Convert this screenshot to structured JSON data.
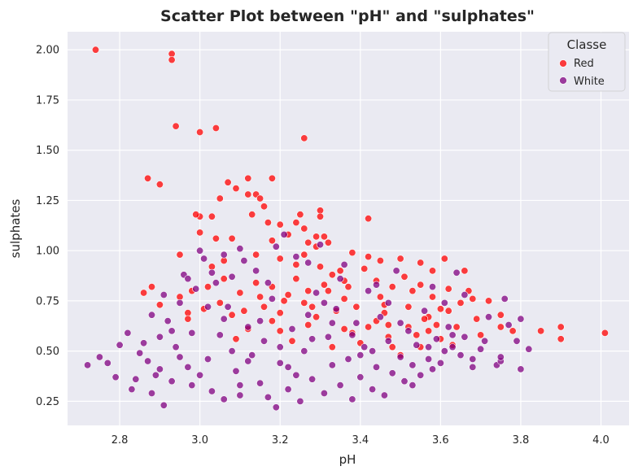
{
  "chart_data": {
    "type": "scatter",
    "title": "Scatter Plot between \"pH\" and \"sulphates\"",
    "xlabel": "pH",
    "ylabel": "sulphates",
    "xlim": [
      2.67,
      4.07
    ],
    "ylim": [
      0.13,
      2.09
    ],
    "x_ticks": [
      2.8,
      3.0,
      3.2,
      3.4,
      3.6,
      3.8,
      4.0
    ],
    "x_tick_labels": [
      "2.8",
      "3.0",
      "3.2",
      "3.4",
      "3.6",
      "3.8",
      "4.0"
    ],
    "y_ticks": [
      0.25,
      0.5,
      0.75,
      1.0,
      1.25,
      1.5,
      1.75,
      2.0
    ],
    "y_tick_labels": [
      "0.25",
      "0.50",
      "0.75",
      "1.00",
      "1.25",
      "1.50",
      "1.75",
      "2.00"
    ],
    "grid": true,
    "legend": {
      "title": "Classe",
      "placement": "top-right"
    },
    "series": [
      {
        "name": "Red",
        "color": "#ff0000",
        "points": [
          [
            2.74,
            2.0
          ],
          [
            2.93,
            1.98
          ],
          [
            2.93,
            1.95
          ],
          [
            2.94,
            1.62
          ],
          [
            3.0,
            1.59
          ],
          [
            3.04,
            1.61
          ],
          [
            3.26,
            1.56
          ],
          [
            2.87,
            1.36
          ],
          [
            2.9,
            1.33
          ],
          [
            3.12,
            1.36
          ],
          [
            3.18,
            1.36
          ],
          [
            3.07,
            1.34
          ],
          [
            3.12,
            1.28
          ],
          [
            3.14,
            1.28
          ],
          [
            3.09,
            1.31
          ],
          [
            3.15,
            1.26
          ],
          [
            3.05,
            1.26
          ],
          [
            3.16,
            1.22
          ],
          [
            3.25,
            1.18
          ],
          [
            3.3,
            1.2
          ],
          [
            3.3,
            1.17
          ],
          [
            3.42,
            1.16
          ],
          [
            3.13,
            1.18
          ],
          [
            3.0,
            1.17
          ],
          [
            2.99,
            1.18
          ],
          [
            3.03,
            1.17
          ],
          [
            3.2,
            1.13
          ],
          [
            3.24,
            1.14
          ],
          [
            3.26,
            1.11
          ],
          [
            3.17,
            1.14
          ],
          [
            3.22,
            1.08
          ],
          [
            3.29,
            1.07
          ],
          [
            3.31,
            1.07
          ],
          [
            3.0,
            1.09
          ],
          [
            3.04,
            1.06
          ],
          [
            3.08,
            1.06
          ],
          [
            3.18,
            1.05
          ],
          [
            3.27,
            1.04
          ],
          [
            3.32,
            1.04
          ],
          [
            2.95,
            0.98
          ],
          [
            3.26,
            0.98
          ],
          [
            3.38,
            0.99
          ],
          [
            3.42,
            0.97
          ],
          [
            3.45,
            0.95
          ],
          [
            3.5,
            0.96
          ],
          [
            3.55,
            0.94
          ],
          [
            3.61,
            0.96
          ],
          [
            3.58,
            0.9
          ],
          [
            3.66,
            0.9
          ],
          [
            3.72,
            0.75
          ],
          [
            3.75,
            0.68
          ],
          [
            3.68,
            0.76
          ],
          [
            3.7,
            0.58
          ],
          [
            3.78,
            0.6
          ],
          [
            3.85,
            0.6
          ],
          [
            3.9,
            0.62
          ],
          [
            3.9,
            0.56
          ],
          [
            4.01,
            0.59
          ],
          [
            3.63,
            0.53
          ],
          [
            3.6,
            0.56
          ],
          [
            3.57,
            0.67
          ],
          [
            3.55,
            0.83
          ],
          [
            3.53,
            0.8
          ],
          [
            3.48,
            0.82
          ],
          [
            3.62,
            0.81
          ],
          [
            3.46,
            0.73
          ],
          [
            3.36,
            0.76
          ],
          [
            3.34,
            0.7
          ],
          [
            3.44,
            0.65
          ],
          [
            3.38,
            0.59
          ],
          [
            3.52,
            0.62
          ],
          [
            3.47,
            0.57
          ],
          [
            3.28,
            0.72
          ],
          [
            3.22,
            0.78
          ],
          [
            3.18,
            0.82
          ],
          [
            3.24,
            0.86
          ],
          [
            3.3,
            0.92
          ],
          [
            3.33,
            0.88
          ],
          [
            3.14,
            0.84
          ],
          [
            3.1,
            0.79
          ],
          [
            3.06,
            0.86
          ],
          [
            3.02,
            0.82
          ],
          [
            2.98,
            0.8
          ],
          [
            2.95,
            0.77
          ],
          [
            2.88,
            0.82
          ],
          [
            2.86,
            0.79
          ],
          [
            2.9,
            0.73
          ],
          [
            2.97,
            0.69
          ],
          [
            3.08,
            0.68
          ],
          [
            3.12,
            0.61
          ],
          [
            3.2,
            0.6
          ],
          [
            3.27,
            0.63
          ],
          [
            3.36,
            0.61
          ],
          [
            3.4,
            0.54
          ],
          [
            3.5,
            0.48
          ],
          [
            3.55,
            0.52
          ],
          [
            3.44,
            0.85
          ],
          [
            3.37,
            0.82
          ],
          [
            3.32,
            0.8
          ],
          [
            3.26,
            0.74
          ],
          [
            3.2,
            0.69
          ],
          [
            3.16,
            0.72
          ],
          [
            3.05,
            0.74
          ],
          [
            3.01,
            0.71
          ],
          [
            2.97,
            0.66
          ],
          [
            3.24,
            0.93
          ],
          [
            3.35,
            0.9
          ],
          [
            3.41,
            0.91
          ],
          [
            3.51,
            0.87
          ],
          [
            3.58,
            0.77
          ],
          [
            3.65,
            0.74
          ],
          [
            3.67,
            0.8
          ],
          [
            3.62,
            0.7
          ],
          [
            3.59,
            0.63
          ],
          [
            3.54,
            0.58
          ],
          [
            3.46,
            0.69
          ],
          [
            3.39,
            0.72
          ],
          [
            3.29,
            0.67
          ],
          [
            3.18,
            0.65
          ],
          [
            3.11,
            0.7
          ],
          [
            3.09,
            0.56
          ],
          [
            3.23,
            0.55
          ],
          [
            3.33,
            0.52
          ],
          [
            3.42,
            0.62
          ],
          [
            3.48,
            0.52
          ],
          [
            3.57,
            0.6
          ],
          [
            3.64,
            0.62
          ],
          [
            3.69,
            0.66
          ],
          [
            3.75,
            0.62
          ],
          [
            3.31,
            0.83
          ],
          [
            3.27,
            0.8
          ],
          [
            3.21,
            0.75
          ],
          [
            3.15,
            0.77
          ],
          [
            3.03,
            0.92
          ],
          [
            3.06,
            0.95
          ],
          [
            3.2,
            0.96
          ],
          [
            3.29,
            1.02
          ],
          [
            3.14,
            0.98
          ],
          [
            3.36,
            0.85
          ],
          [
            3.45,
            0.77
          ],
          [
            3.52,
            0.72
          ],
          [
            3.6,
            0.71
          ],
          [
            3.47,
            0.63
          ],
          [
            3.56,
            0.66
          ]
        ]
      },
      {
        "name": "White",
        "color": "#800080",
        "points": [
          [
            2.72,
            0.43
          ],
          [
            2.75,
            0.47
          ],
          [
            2.77,
            0.44
          ],
          [
            2.79,
            0.37
          ],
          [
            2.8,
            0.53
          ],
          [
            2.82,
            0.59
          ],
          [
            2.83,
            0.31
          ],
          [
            2.84,
            0.36
          ],
          [
            2.85,
            0.49
          ],
          [
            2.86,
            0.54
          ],
          [
            2.87,
            0.45
          ],
          [
            2.88,
            0.68
          ],
          [
            2.88,
            0.29
          ],
          [
            2.9,
            0.57
          ],
          [
            2.9,
            0.41
          ],
          [
            2.91,
            0.78
          ],
          [
            2.91,
            0.23
          ],
          [
            2.92,
            0.65
          ],
          [
            2.93,
            0.35
          ],
          [
            2.94,
            0.52
          ],
          [
            2.95,
            0.74
          ],
          [
            2.96,
            0.88
          ],
          [
            2.97,
            0.42
          ],
          [
            2.98,
            0.33
          ],
          [
            2.99,
            0.81
          ],
          [
            3.0,
            1.0
          ],
          [
            3.01,
            0.96
          ],
          [
            3.02,
            0.46
          ],
          [
            3.03,
            0.3
          ],
          [
            3.04,
            0.84
          ],
          [
            3.05,
            0.58
          ],
          [
            3.06,
            0.26
          ],
          [
            3.07,
            0.72
          ],
          [
            3.08,
            0.87
          ],
          [
            3.09,
            0.4
          ],
          [
            3.1,
            1.01
          ],
          [
            3.1,
            0.28
          ],
          [
            3.12,
            0.62
          ],
          [
            3.13,
            0.48
          ],
          [
            3.14,
            0.9
          ],
          [
            3.15,
            0.34
          ],
          [
            3.16,
            0.55
          ],
          [
            3.17,
            0.27
          ],
          [
            3.18,
            0.76
          ],
          [
            3.19,
            0.22
          ],
          [
            3.2,
            0.44
          ],
          [
            3.21,
            1.08
          ],
          [
            3.22,
            0.31
          ],
          [
            3.23,
            0.61
          ],
          [
            3.24,
            0.97
          ],
          [
            3.25,
            0.25
          ],
          [
            3.26,
            0.5
          ],
          [
            3.27,
            0.68
          ],
          [
            3.28,
            0.36
          ],
          [
            3.29,
            0.79
          ],
          [
            3.3,
            1.03
          ],
          [
            3.31,
            0.29
          ],
          [
            3.32,
            0.57
          ],
          [
            3.33,
            0.43
          ],
          [
            3.34,
            0.71
          ],
          [
            3.35,
            0.33
          ],
          [
            3.36,
            0.93
          ],
          [
            3.37,
            0.46
          ],
          [
            3.38,
            0.26
          ],
          [
            3.39,
            0.64
          ],
          [
            3.4,
            0.37
          ],
          [
            3.41,
            0.52
          ],
          [
            3.42,
            0.8
          ],
          [
            3.43,
            0.31
          ],
          [
            3.44,
            0.42
          ],
          [
            3.45,
            0.67
          ],
          [
            3.46,
            0.28
          ],
          [
            3.47,
            0.55
          ],
          [
            3.48,
            0.39
          ],
          [
            3.49,
            0.9
          ],
          [
            3.5,
            0.47
          ],
          [
            3.51,
            0.35
          ],
          [
            3.52,
            0.6
          ],
          [
            3.53,
            0.43
          ],
          [
            3.54,
            0.53
          ],
          [
            3.55,
            0.38
          ],
          [
            3.56,
            0.7
          ],
          [
            3.57,
            0.46
          ],
          [
            3.58,
            0.41
          ],
          [
            3.59,
            0.56
          ],
          [
            3.6,
            0.44
          ],
          [
            3.61,
            0.5
          ],
          [
            3.62,
            0.62
          ],
          [
            3.63,
            0.52
          ],
          [
            3.64,
            0.89
          ],
          [
            3.65,
            0.48
          ],
          [
            3.66,
            0.57
          ],
          [
            3.68,
            0.46
          ],
          [
            3.7,
            0.51
          ],
          [
            3.72,
            0.67
          ],
          [
            3.74,
            0.43
          ],
          [
            3.75,
            0.45
          ],
          [
            3.76,
            0.76
          ],
          [
            3.77,
            0.63
          ],
          [
            3.79,
            0.55
          ],
          [
            3.8,
            0.41
          ],
          [
            3.8,
            0.66
          ],
          [
            3.82,
            0.51
          ],
          [
            3.75,
            0.47
          ],
          [
            3.68,
            0.42
          ],
          [
            3.71,
            0.55
          ],
          [
            3.06,
            0.98
          ],
          [
            3.11,
            0.95
          ],
          [
            3.03,
            0.89
          ],
          [
            2.97,
            0.86
          ],
          [
            3.19,
            1.02
          ],
          [
            3.27,
            0.94
          ],
          [
            3.35,
            0.86
          ],
          [
            3.44,
            0.83
          ],
          [
            3.58,
            0.82
          ],
          [
            3.66,
            0.78
          ],
          [
            3.61,
            0.74
          ],
          [
            2.98,
            0.59
          ],
          [
            3.0,
            0.38
          ],
          [
            3.08,
            0.5
          ],
          [
            3.15,
            0.65
          ],
          [
            3.22,
            0.42
          ],
          [
            3.28,
            0.56
          ],
          [
            3.33,
            0.64
          ],
          [
            3.4,
            0.48
          ],
          [
            3.47,
            0.74
          ],
          [
            3.53,
            0.33
          ],
          [
            3.1,
            0.33
          ],
          [
            3.2,
            0.52
          ],
          [
            3.24,
            0.38
          ],
          [
            3.12,
            0.45
          ],
          [
            3.06,
            0.66
          ],
          [
            2.95,
            0.47
          ],
          [
            2.89,
            0.38
          ],
          [
            2.93,
            0.6
          ],
          [
            3.02,
            0.72
          ],
          [
            3.17,
            0.84
          ],
          [
            3.31,
            0.74
          ],
          [
            3.38,
            0.58
          ],
          [
            3.43,
            0.5
          ],
          [
            3.5,
            0.64
          ],
          [
            3.57,
            0.52
          ],
          [
            3.63,
            0.58
          ]
        ]
      }
    ]
  }
}
